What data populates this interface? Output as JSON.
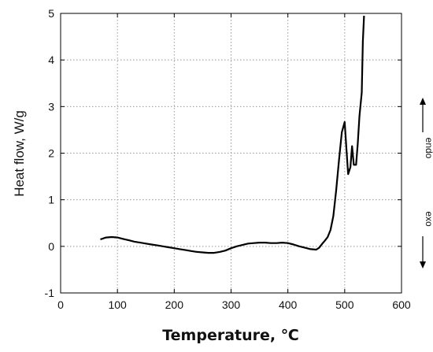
{
  "chart_data": {
    "type": "line",
    "title": "",
    "xlabel": "Temperature, ℃",
    "ylabel": "Heat flow, W/g",
    "xlim": [
      0,
      600
    ],
    "ylim": [
      -1,
      5
    ],
    "xticks": [
      0,
      100,
      200,
      300,
      400,
      500,
      600
    ],
    "yticks": [
      -1,
      0,
      1,
      2,
      3,
      4,
      5
    ],
    "grid": true,
    "line_color": "#000000",
    "side_annotations": {
      "upper": "endo",
      "lower": "exo"
    },
    "series": [
      {
        "x": [
          70,
          80,
          90,
          100,
          110,
          120,
          130,
          140,
          150,
          160,
          170,
          180,
          190,
          200,
          210,
          220,
          230,
          240,
          250,
          260,
          270,
          280,
          290,
          300,
          310,
          320,
          330,
          340,
          350,
          360,
          370,
          380,
          390,
          400,
          410,
          420,
          430,
          440,
          450,
          455,
          460,
          465,
          470,
          475,
          480,
          485,
          490,
          495,
          500,
          503,
          506,
          510,
          513,
          516,
          520,
          523,
          526,
          530,
          532,
          534
        ],
        "y": [
          0.15,
          0.19,
          0.2,
          0.19,
          0.16,
          0.13,
          0.1,
          0.08,
          0.06,
          0.04,
          0.02,
          0.0,
          -0.02,
          -0.04,
          -0.06,
          -0.08,
          -0.1,
          -0.12,
          -0.13,
          -0.14,
          -0.14,
          -0.12,
          -0.09,
          -0.04,
          0.0,
          0.03,
          0.06,
          0.07,
          0.08,
          0.08,
          0.07,
          0.07,
          0.08,
          0.07,
          0.04,
          0.0,
          -0.03,
          -0.06,
          -0.07,
          -0.03,
          0.05,
          0.12,
          0.2,
          0.35,
          0.65,
          1.2,
          1.85,
          2.45,
          2.67,
          2.1,
          1.55,
          1.7,
          2.15,
          1.75,
          1.75,
          2.2,
          2.8,
          3.3,
          4.4,
          4.95
        ]
      }
    ]
  }
}
